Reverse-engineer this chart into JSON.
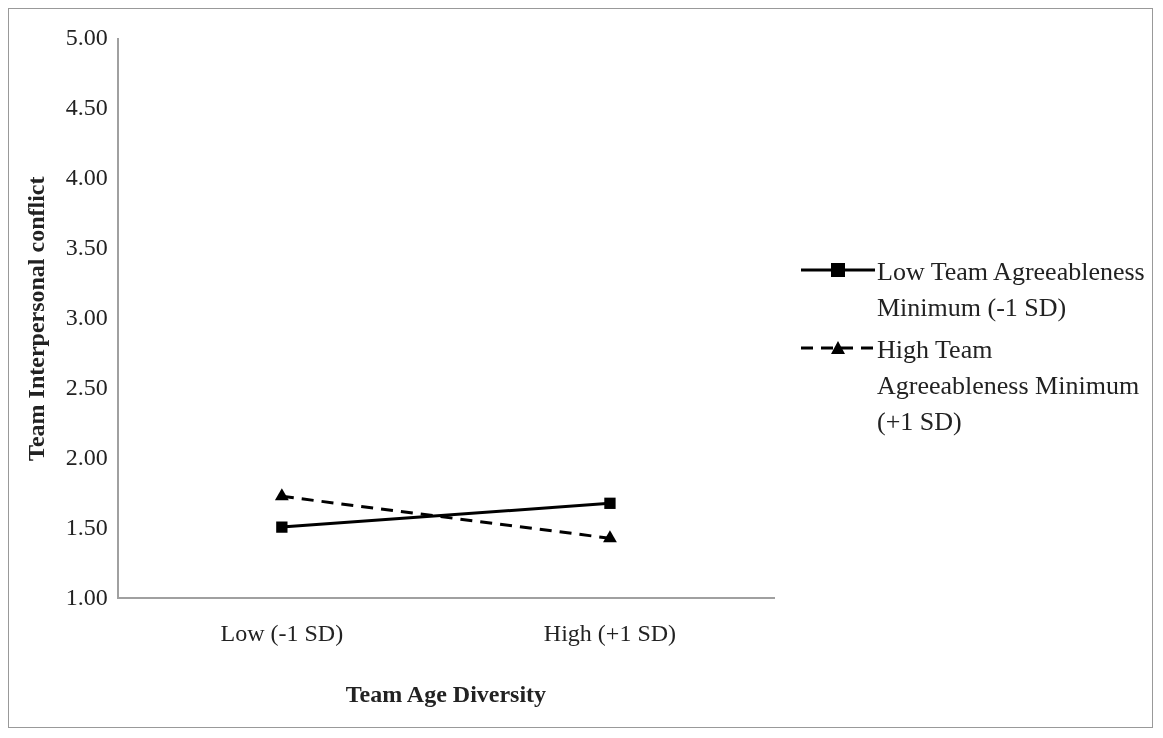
{
  "chart_data": {
    "type": "line",
    "xlabel": "Team Age Diversity",
    "ylabel": "Team Interpersonal conflict",
    "categories": [
      "Low (-1 SD)",
      "High (+1 SD)"
    ],
    "series": [
      {
        "name": "Low Team Agreeableness Minimum (-1 SD)",
        "color": "#000000",
        "values": [
          1.51,
          1.68
        ],
        "marker": "square",
        "line_style": "solid"
      },
      {
        "name": "High Team Agreeableness Minimum (+1 SD)",
        "color": "#000000",
        "values": [
          1.73,
          1.43
        ],
        "marker": "triangle",
        "line_style": "dashed"
      }
    ],
    "ylim": [
      1,
      5
    ],
    "yticks": [
      {
        "value": 1,
        "label": "1.00"
      },
      {
        "value": 1.5,
        "label": "1.50"
      },
      {
        "value": 2,
        "label": "2.00"
      },
      {
        "value": 2.5,
        "label": "2.50"
      },
      {
        "value": 3,
        "label": "3.00"
      },
      {
        "value": 3.5,
        "label": "3.50"
      },
      {
        "value": 4,
        "label": "4.00"
      },
      {
        "value": 4.5,
        "label": "4.50"
      },
      {
        "value": 5,
        "label": "5.00"
      }
    ],
    "grid": false,
    "legend": "right"
  }
}
